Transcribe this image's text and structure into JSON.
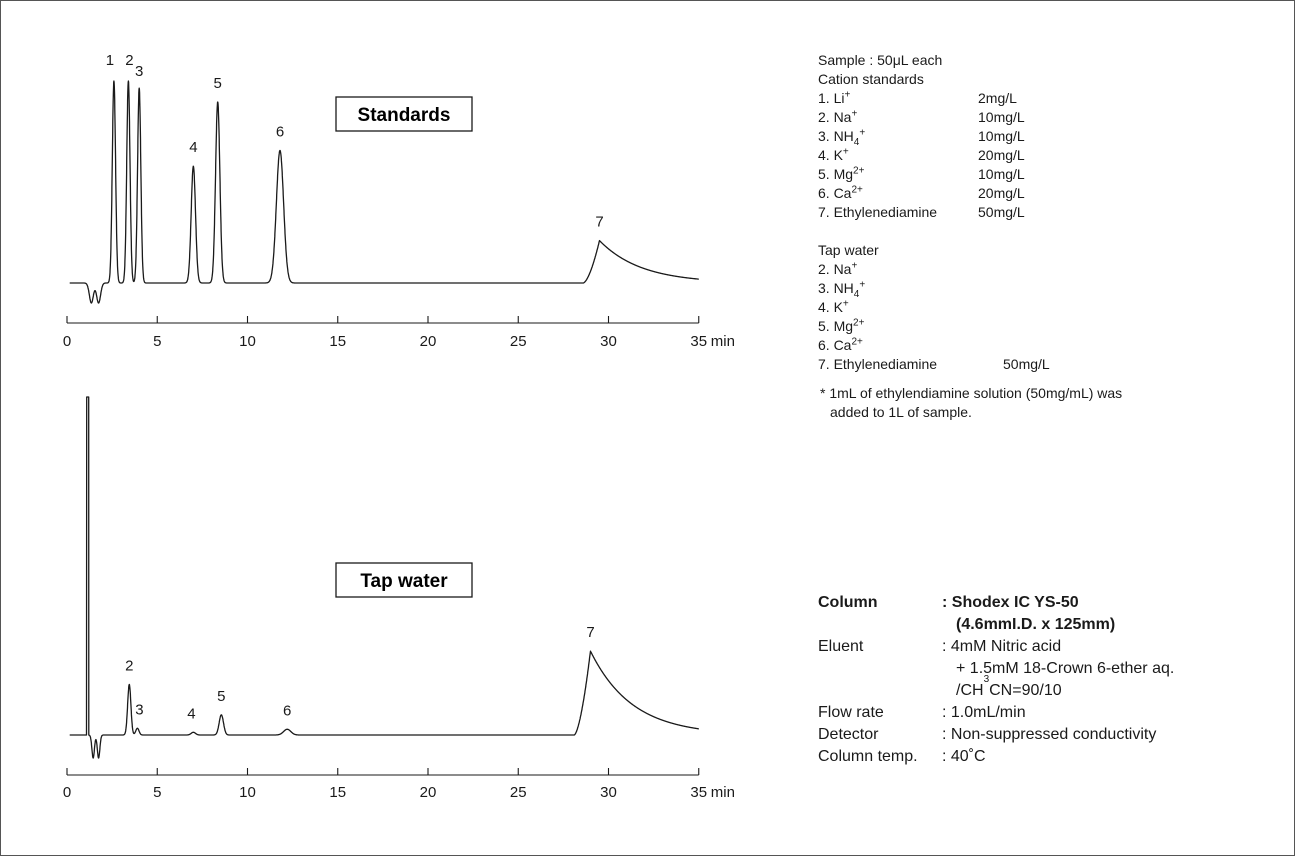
{
  "chart_data": [
    {
      "type": "line",
      "label": "Standards",
      "x_unit": "min",
      "xlim": [
        0,
        35
      ],
      "x_ticks": [
        "0",
        "5",
        "10",
        "15",
        "20",
        "25",
        "30",
        "35"
      ],
      "peaks": [
        {
          "label": "1",
          "x": 2.6,
          "height": 1.0
        },
        {
          "label": "2",
          "x": 3.4,
          "height": 1.0
        },
        {
          "label": "3",
          "x": 4.0,
          "height": 0.965
        },
        {
          "label": "4",
          "x": 7.0,
          "height": 0.578
        },
        {
          "label": "5",
          "x": 8.35,
          "height": 0.896
        },
        {
          "label": "6",
          "x": 11.8,
          "height": 0.656
        },
        {
          "label": "7",
          "x": 29.5,
          "height": 0.21
        }
      ]
    },
    {
      "type": "line",
      "label": "Tap water",
      "x_unit": "min",
      "xlim": [
        0,
        35
      ],
      "x_ticks": [
        "0",
        "5",
        "10",
        "15",
        "20",
        "25",
        "30",
        "35"
      ],
      "peaks": [
        {
          "label": "2",
          "x": 3.45,
          "height": 0.15
        },
        {
          "label": "3",
          "x": 3.9,
          "height": 0.02
        },
        {
          "label": "4",
          "x": 7.0,
          "height": 0.008
        },
        {
          "label": "5",
          "x": 8.55,
          "height": 0.06
        },
        {
          "label": "6",
          "x": 12.2,
          "height": 0.017
        },
        {
          "label": "7",
          "x": 29.0,
          "height": 0.249
        }
      ]
    }
  ],
  "sample_label": "Sample : 50μL each",
  "cation_title": "Cation standards",
  "cation_standards": [
    {
      "prefix": "1. Li",
      "sup": "+",
      "sub": "",
      "sup2": "",
      "conc": "2mg/L"
    },
    {
      "prefix": "2. Na",
      "sup": "+",
      "sub": "",
      "sup2": "",
      "conc": "10mg/L"
    },
    {
      "prefix": "3. NH",
      "sup": "",
      "sub": "4",
      "sup2": "+",
      "conc": "10mg/L"
    },
    {
      "prefix": "4. K",
      "sup": "+",
      "sub": "",
      "sup2": "",
      "conc": "20mg/L"
    },
    {
      "prefix": "5. Mg",
      "sup": "2+",
      "sub": "",
      "sup2": "",
      "conc": "10mg/L"
    },
    {
      "prefix": "6. Ca",
      "sup": "2+",
      "sub": "",
      "sup2": "",
      "conc": "20mg/L"
    },
    {
      "prefix": "7. Ethylenediamine",
      "sup": "",
      "sub": "",
      "sup2": "",
      "conc": "50mg/L"
    }
  ],
  "tap_title": "Tap water",
  "tap_water": [
    {
      "prefix": "2. Na",
      "sup": "+",
      "sub": "",
      "sup2": "",
      "conc": ""
    },
    {
      "prefix": "3. NH",
      "sup": "",
      "sub": "4",
      "sup2": "+",
      "conc": ""
    },
    {
      "prefix": "4. K",
      "sup": "+",
      "sub": "",
      "sup2": "",
      "conc": ""
    },
    {
      "prefix": "5. Mg",
      "sup": "2+",
      "sub": "",
      "sup2": "",
      "conc": ""
    },
    {
      "prefix": "6. Ca",
      "sup": "2+",
      "sub": "",
      "sup2": "",
      "conc": ""
    },
    {
      "prefix": "7. Ethylenediamine",
      "sup": "",
      "sub": "",
      "sup2": "",
      "conc": "50mg/L"
    }
  ],
  "footnote_line1": "* 1mL of ethylendiamine solution (50mg/mL) was",
  "footnote_line2": "added to 1L of sample.",
  "conditions": {
    "column_label": "Column",
    "column_value_1": ": Shodex IC YS-50",
    "column_value_2": "(4.6mmI.D. x 125mm)",
    "eluent_label": "Eluent",
    "eluent_value_1": ": 4mM Nitric acid",
    "eluent_value_2": "+ 1.5mM 18-Crown 6-ether aq.",
    "eluent_value_3_prefix": "/CH",
    "eluent_value_3_sub": "3",
    "eluent_value_3_suffix": "CN=90/10",
    "flow_label": "Flow rate",
    "flow_value": ": 1.0mL/min",
    "detector_label": "Detector",
    "detector_value": ": Non-suppressed conductivity",
    "temp_label": "Column temp.",
    "temp_value": ": 40˚C"
  }
}
